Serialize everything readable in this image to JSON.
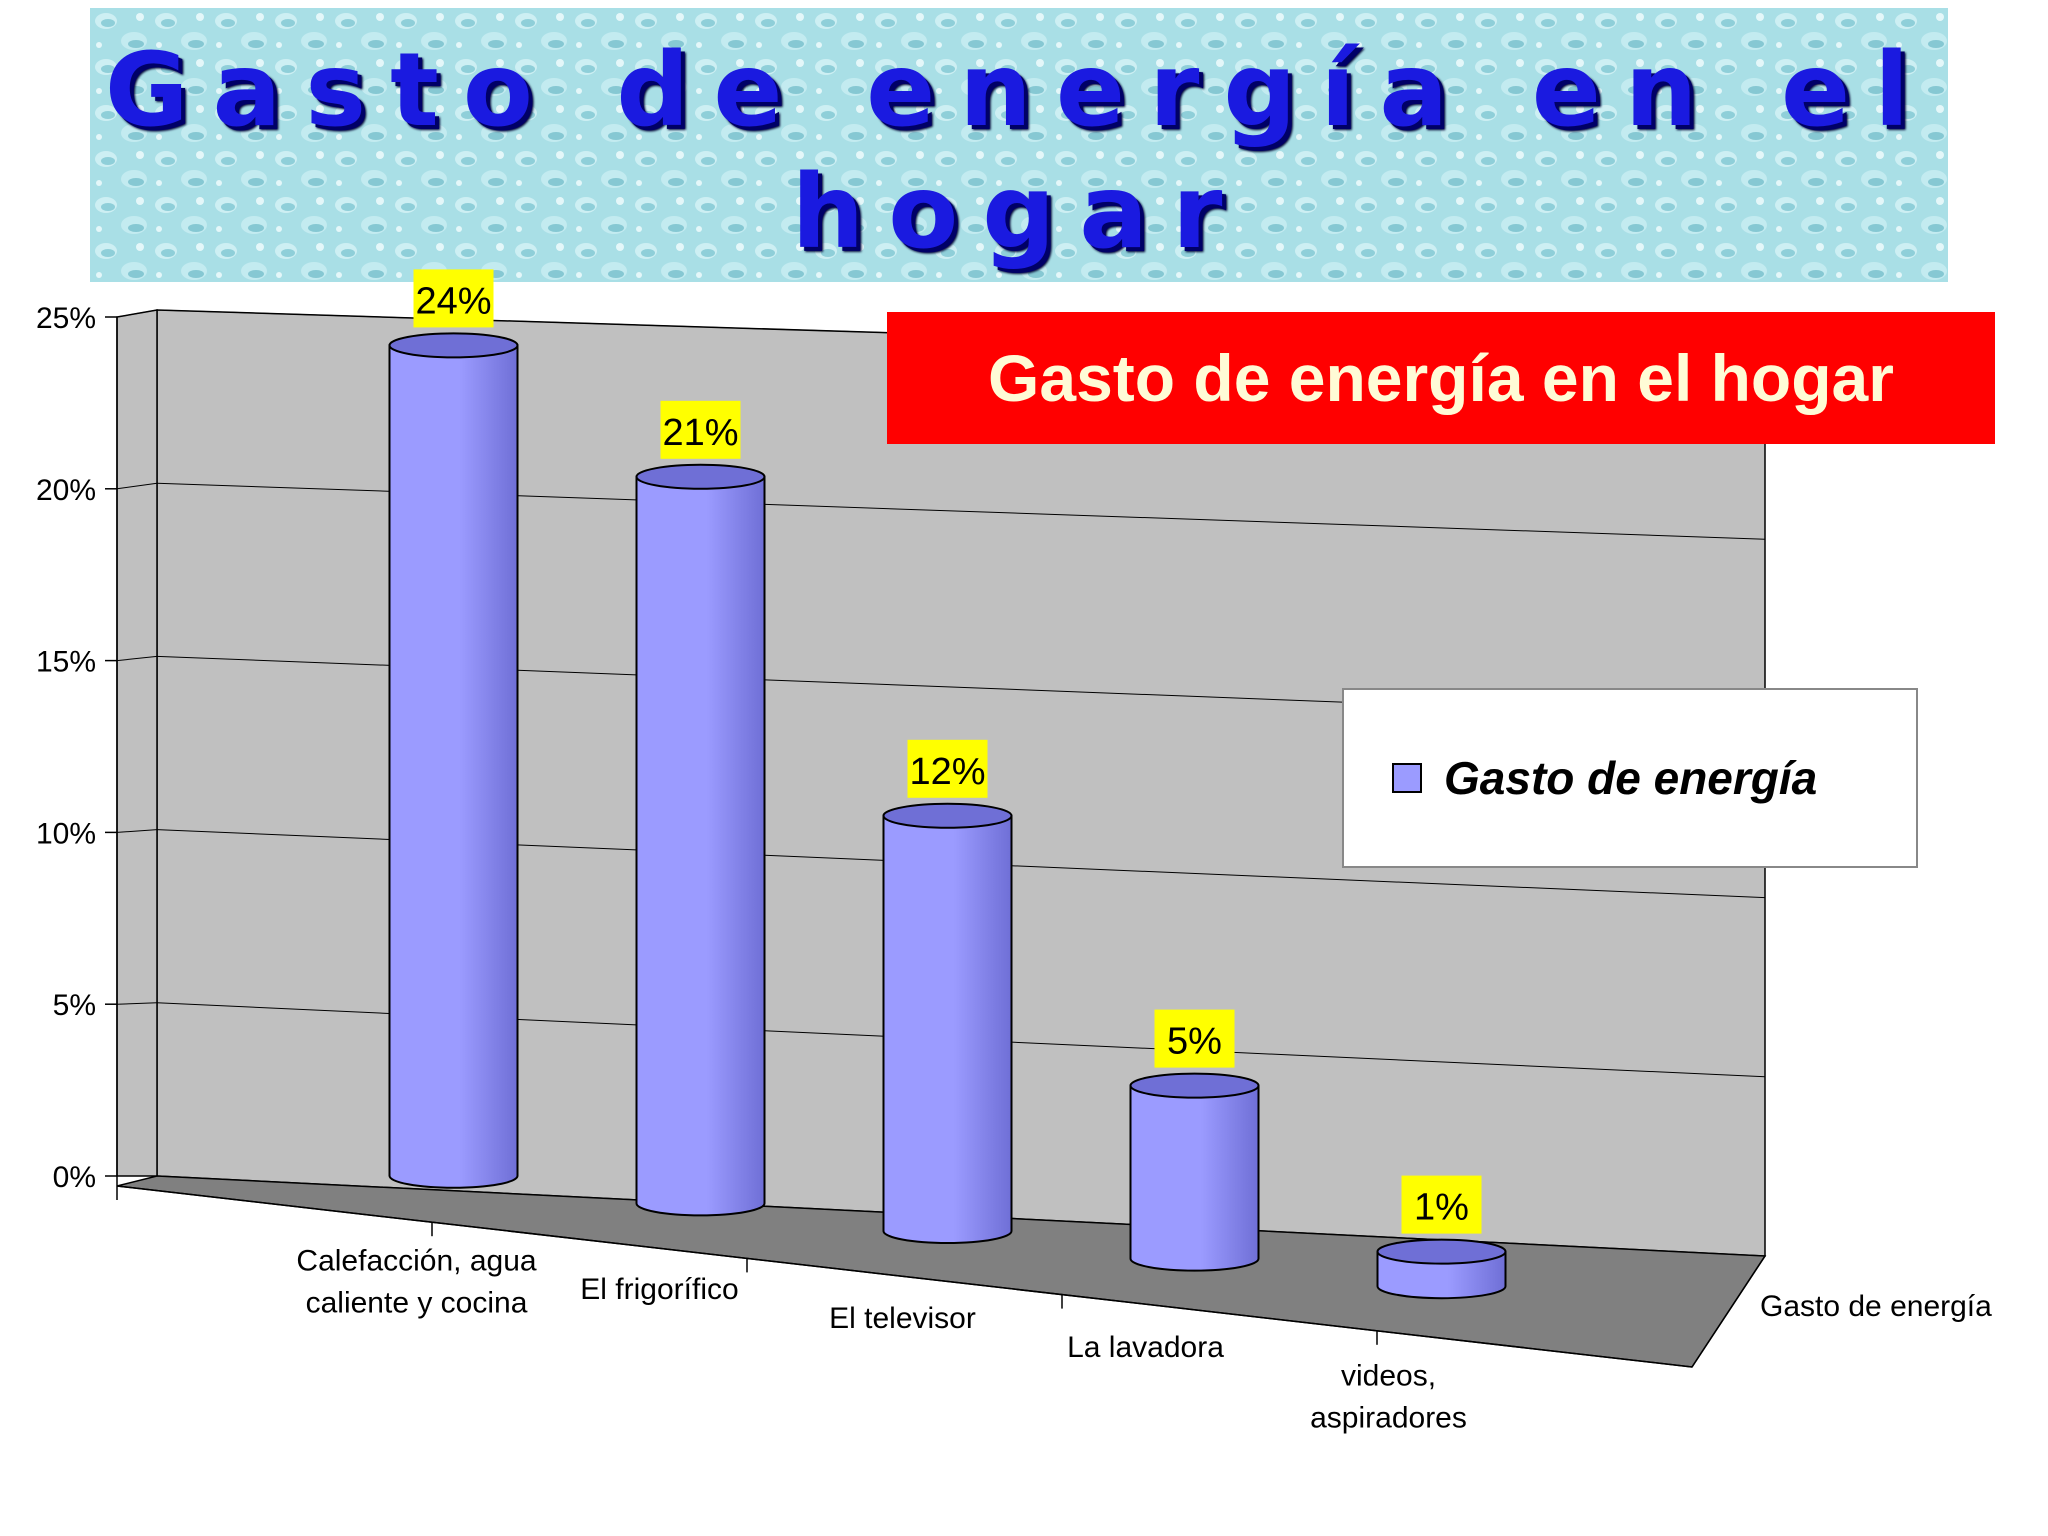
{
  "banner": {
    "title": "Gasto de energía en el hogar"
  },
  "chart_data": {
    "type": "bar",
    "title": "Gasto de energía en el hogar",
    "categories": [
      "Calefacción, agua caliente y cocina",
      "El frigorífico",
      "El televisor",
      "La lavadora",
      "videos, aspiradores"
    ],
    "series": [
      {
        "name": "Gasto de energía",
        "values": [
          24,
          21,
          12,
          5,
          1
        ]
      }
    ],
    "data_labels": [
      "24%",
      "21%",
      "12%",
      "5%",
      "1%"
    ],
    "y_ticks": [
      "0%",
      "5%",
      "10%",
      "15%",
      "20%",
      "25%"
    ],
    "ylim": [
      0,
      25
    ],
    "depth_axis_label": "Gasto de energía",
    "legend": "right",
    "grid": true,
    "colors": {
      "bar": "#9b9bff",
      "bar_dark": "#6f6fd6",
      "wall": "#c0c0c0",
      "floor": "#808080",
      "label_bg": "#ffff00",
      "subtitle_bg": "#ff0000",
      "subtitle_text": "#fffbd6"
    }
  }
}
